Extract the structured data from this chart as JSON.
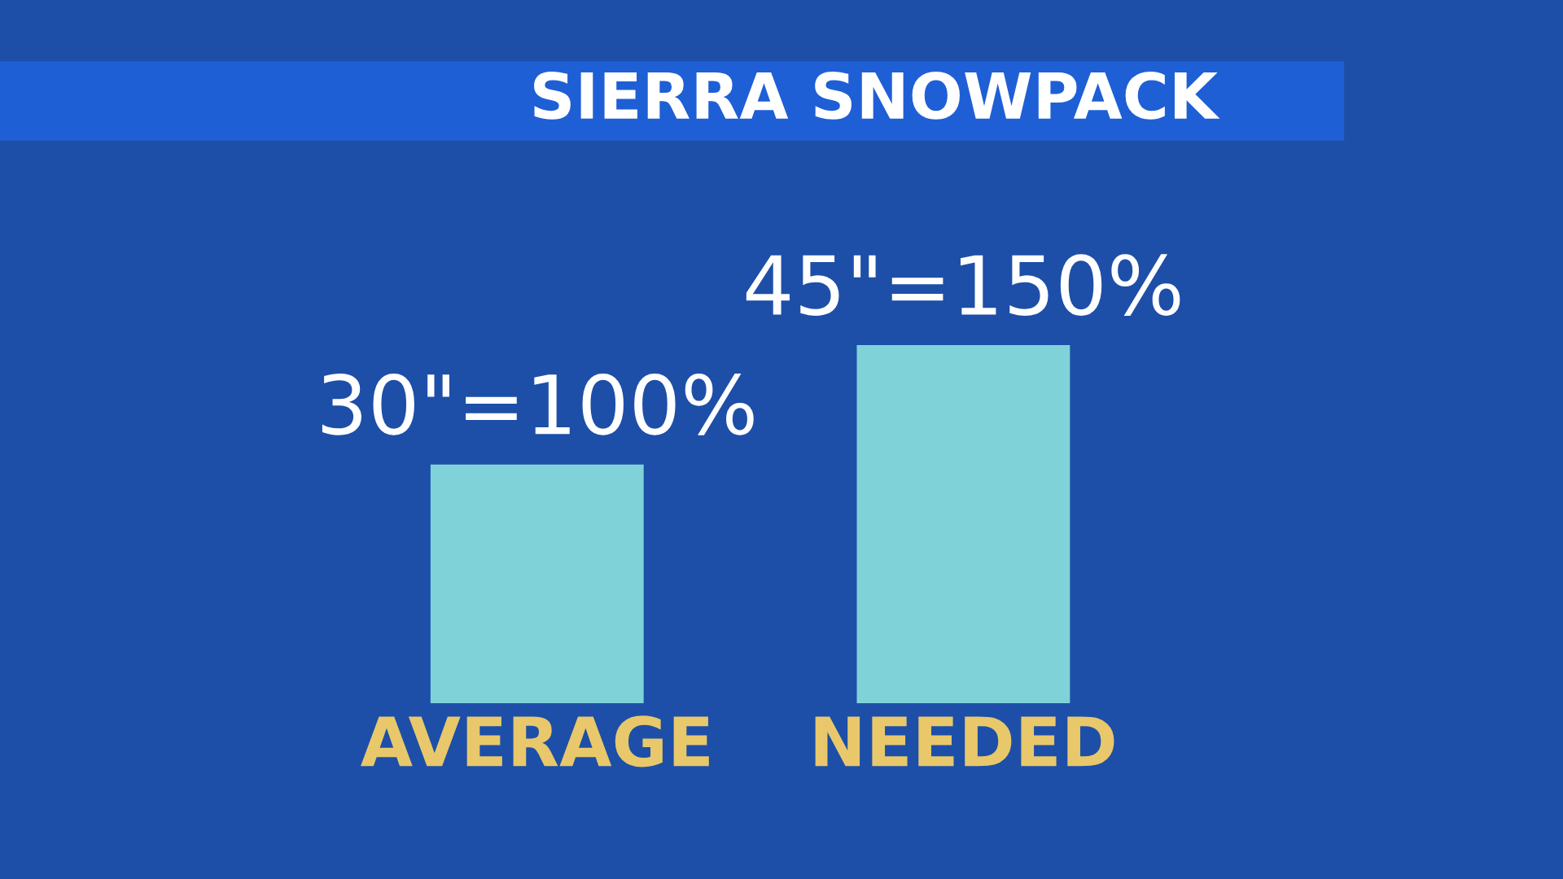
{
  "chart_data": {
    "type": "bar",
    "title": "SIERRA SNOWPACK",
    "categories": [
      "AVERAGE",
      "NEEDED"
    ],
    "values": [
      30,
      45
    ],
    "value_labels": [
      "30\"=100%",
      "45\"=150%"
    ],
    "color": "#7fd3d8",
    "grid": false
  }
}
